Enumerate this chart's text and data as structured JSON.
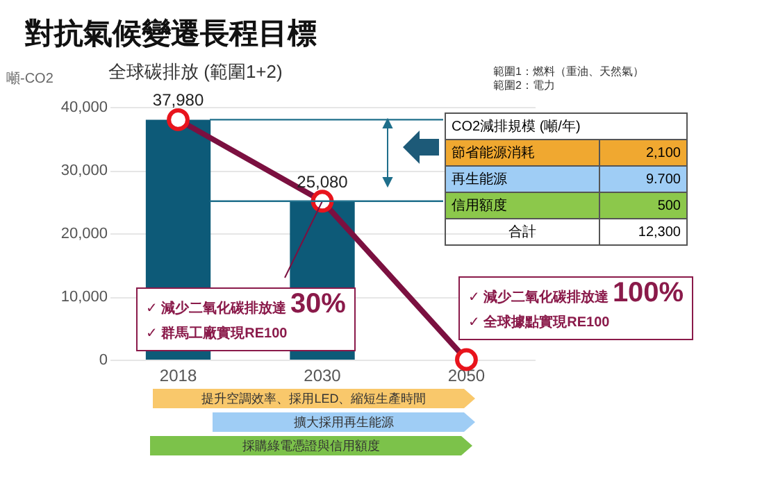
{
  "chart_data": {
    "type": "bar",
    "title": "對抗氣候變遷長程目標",
    "subtitle": "全球碳排放 (範圍1+2)",
    "ylabel": "噸-CO2",
    "categories": [
      "2018",
      "2030",
      "2050"
    ],
    "series": [
      {
        "color": "#0d5a78",
        "values": [
          37980,
          25080,
          0
        ]
      },
      {
        "type": "line",
        "color": "#7b1040",
        "values": [
          37980,
          25080,
          0
        ],
        "value_labels": [
          "37,980",
          "25,080",
          null
        ],
        "marker": "circle"
      }
    ],
    "ylim": [
      0,
      40000
    ],
    "yticks": [
      {
        "value": 0,
        "label": "0"
      },
      {
        "value": 10000,
        "label": "10,000"
      },
      {
        "value": 20000,
        "label": "20,000"
      },
      {
        "value": 30000,
        "label": "30,000"
      },
      {
        "value": 40000,
        "label": "40,000"
      }
    ],
    "grid": "y",
    "ref_lines": [
      {
        "axis": "y",
        "value": 37980,
        "color": "#1f6f8b"
      },
      {
        "axis": "y",
        "value": 25080,
        "color": "#1f6f8b"
      }
    ],
    "annotations": [
      "範圍1：燃料（重油、天然氣）",
      "範圍2：電力",
      "CO2減排規模 (噸/年)",
      "節省能源消耗",
      "2,100",
      "再生能源",
      "9.700",
      "信用額度",
      "500",
      "合計",
      "12,300",
      "✓ 減少二氧化碳排放達",
      {
        "text": "30%",
        "x": "2030",
        "y": 25080
      },
      "✓ 群馬工廠實現RE100",
      "✓ 減少二氧化碳排放達",
      "100%",
      "✓ 全球據點實現RE100",
      "提升空調效率、採用LED、縮短生產時間",
      "擴大採用再生能源",
      "採購綠電憑證與信用額度"
    ]
  }
}
